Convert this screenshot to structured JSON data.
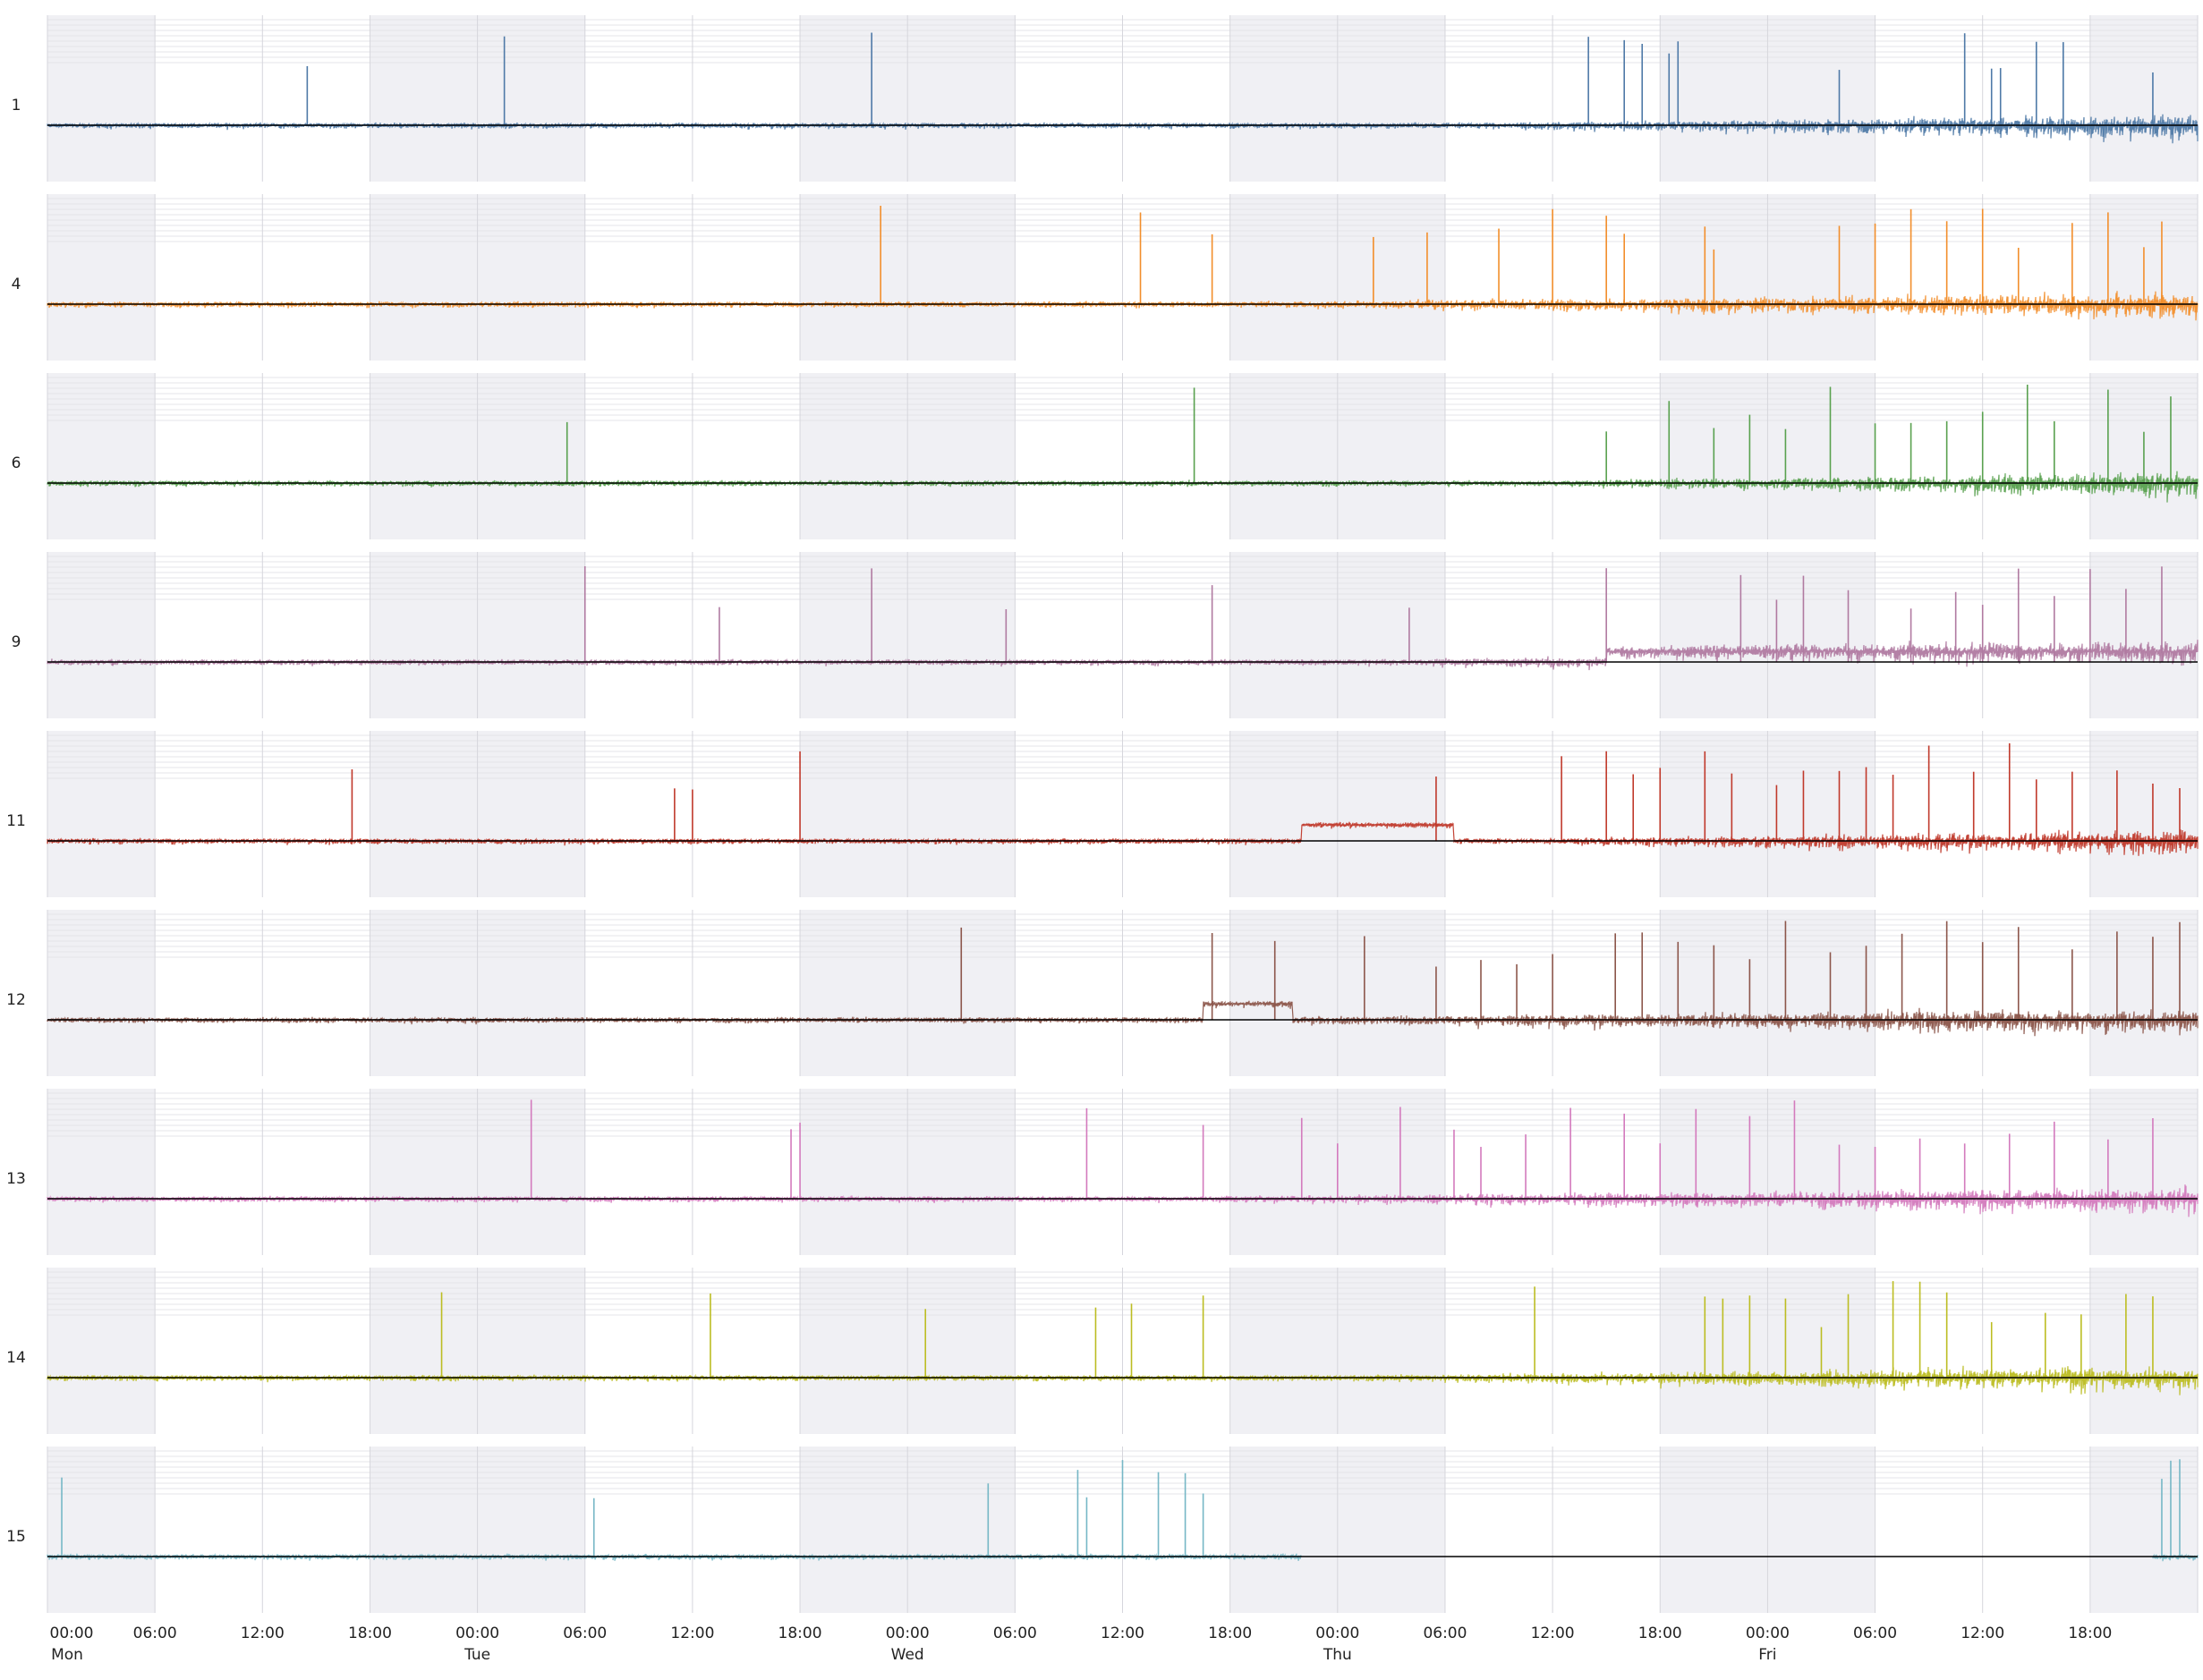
{
  "chart_data": {
    "type": "line",
    "title": "",
    "xlabel": "",
    "ylabel": "",
    "x_range_hours": [
      0,
      120
    ],
    "x_tick_interval_hours": 6,
    "x_tick_labels": [
      "00:00",
      "06:00",
      "12:00",
      "18:00",
      "00:00",
      "06:00",
      "12:00",
      "18:00",
      "00:00",
      "06:00",
      "12:00",
      "18:00",
      "00:00",
      "06:00",
      "12:00",
      "18:00",
      "00:00",
      "06:00",
      "12:00",
      "18:00"
    ],
    "day_labels": [
      "Mon",
      "Tue",
      "Wed",
      "Thu",
      "Fri"
    ],
    "grid": true,
    "legend": "none",
    "series_style": "noisy time-series with sparse upward spikes; black horizontal baseline per panel",
    "series": [
      {
        "name": "1",
        "color": "#4e79a7",
        "noise_growth_start_h": 78,
        "spikes_h": [
          14.5,
          25.5,
          46,
          86,
          88,
          89,
          90.5,
          91,
          100,
          107,
          108.5,
          109,
          111,
          112.5,
          117.5
        ]
      },
      {
        "name": "4",
        "color": "#f28e2b",
        "noise_growth_start_h": 66,
        "spikes_h": [
          46.5,
          61,
          65,
          74,
          77,
          81,
          84,
          87,
          88,
          92.5,
          93,
          100,
          102,
          104,
          106,
          108,
          110,
          113,
          115,
          117,
          118
        ]
      },
      {
        "name": "6",
        "color": "#59a14f",
        "noise_growth_start_h": 82,
        "spikes_h": [
          29,
          64,
          87,
          90.5,
          93,
          95,
          97,
          99.5,
          102,
          104,
          106,
          108,
          110.5,
          112,
          115,
          117,
          118.5
        ]
      },
      {
        "name": "9",
        "color": "#b07aa1",
        "noise_growth_start_h": 72,
        "level_shift_h": 87,
        "spikes_h": [
          30,
          37.5,
          46,
          53.5,
          65,
          76,
          87,
          94.5,
          96.5,
          98,
          100.5,
          104,
          106.5,
          108,
          110,
          112,
          114,
          116,
          118
        ]
      },
      {
        "name": "11",
        "color": "#c0392b",
        "noise_growth_start_h": 82,
        "level_shift_h": 70,
        "level_shift_end_h": 78.5,
        "spikes_h": [
          17,
          35,
          36,
          42,
          77.5,
          84.5,
          87,
          88.5,
          90,
          92.5,
          94,
          96.5,
          98,
          100,
          101.5,
          103,
          105,
          107.5,
          109.5,
          111,
          113,
          115.5,
          117.5,
          119
        ]
      },
      {
        "name": "12",
        "color": "#8c564b",
        "noise_growth_start_h": 64.5,
        "level_shift_h": 64.5,
        "level_shift_end_h": 69.5,
        "spikes_h": [
          51,
          65,
          68.5,
          73.5,
          77.5,
          80,
          82,
          84,
          87.5,
          89,
          91,
          93,
          95,
          97,
          99.5,
          101.5,
          103.5,
          106,
          108,
          110,
          113,
          115.5,
          117.5,
          119
        ]
      },
      {
        "name": "13",
        "color": "#d37abd",
        "noise_growth_start_h": 64.5,
        "spikes_h": [
          27,
          41.5,
          42,
          58,
          64.5,
          70,
          72,
          75.5,
          78.5,
          80,
          82.5,
          85,
          88,
          90,
          92,
          95,
          97.5,
          100,
          102,
          104.5,
          107,
          109.5,
          112,
          115,
          117.5
        ]
      },
      {
        "name": "14",
        "color": "#bcbd22",
        "noise_growth_start_h": 72,
        "spikes_h": [
          22,
          37,
          49,
          58.5,
          60.5,
          64.5,
          83,
          92.5,
          93.5,
          95,
          97,
          99,
          100.5,
          103,
          104.5,
          106,
          108.5,
          111.5,
          113.5,
          116,
          117.5
        ]
      },
      {
        "name": "15",
        "color": "#76b7c6",
        "gap_h": [
          70,
          117.5
        ],
        "spikes_h": [
          0.8,
          30.5,
          52.5,
          57.5,
          58,
          60,
          62,
          63.5,
          64.5,
          118,
          118.5,
          119
        ]
      }
    ]
  }
}
